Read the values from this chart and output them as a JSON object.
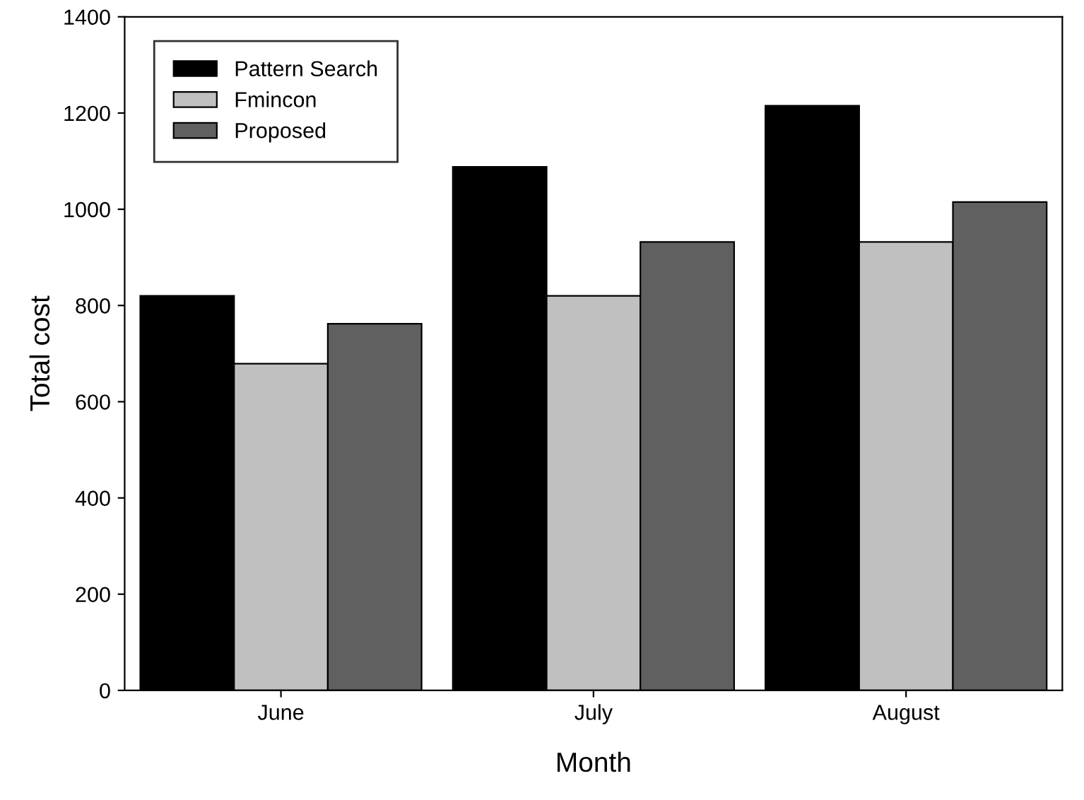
{
  "chart_data": {
    "type": "bar",
    "xlabel": "Month",
    "ylabel": "Total cost",
    "categories": [
      "June",
      "July",
      "August"
    ],
    "series": [
      {
        "name": "Pattern Search",
        "color": "#000000",
        "values": [
          820,
          1088,
          1215
        ]
      },
      {
        "name": "Fmincon",
        "color": "#c0c0c0",
        "values": [
          679,
          820,
          932
        ]
      },
      {
        "name": "Proposed",
        "color": "#606060",
        "values": [
          762,
          932,
          1015
        ]
      }
    ],
    "ylim": [
      0,
      1400
    ],
    "yticks": [
      0,
      200,
      400,
      600,
      800,
      1000,
      1200,
      1400
    ],
    "grid": false,
    "legend": "top left"
  }
}
